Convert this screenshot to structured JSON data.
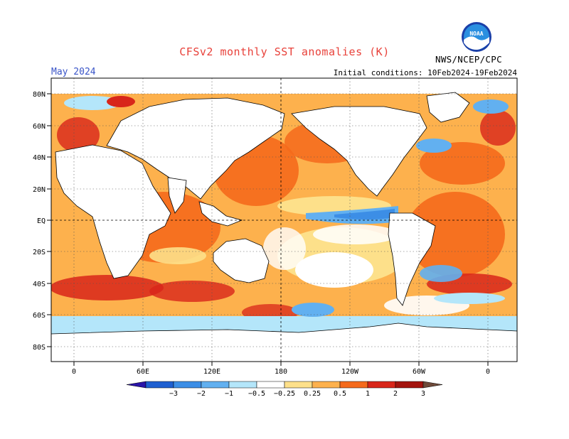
{
  "header": {
    "title": "CFSv2 monthly SST anomalies (K)",
    "month": "May 2024",
    "initial_conditions": "Initial conditions: 10Feb2024-19Feb2024",
    "agency": "NWS/NCEP/CPC",
    "logo_text": "NOAA"
  },
  "map": {
    "lat_labels": [
      "80N",
      "60N",
      "40N",
      "20N",
      "EQ",
      "20S",
      "40S",
      "60S",
      "80S"
    ],
    "lon_labels": [
      "0",
      "60E",
      "120E",
      "180",
      "120W",
      "60W",
      "0"
    ]
  },
  "legend": {
    "labels": [
      "-3",
      "-2",
      "-1",
      "-0.5",
      "-0.25",
      "0.25",
      "0.5",
      "1",
      "2",
      "3"
    ],
    "colors": [
      "#2a14a8",
      "#1e5fd0",
      "#3c8ee6",
      "#62b0f0",
      "#b4e6fa",
      "#ffffff",
      "#fde08a",
      "#fdb14d",
      "#f56a1c",
      "#d8261a",
      "#a3140e",
      "#6e4a3a"
    ]
  },
  "colors": {
    "title": "#e8413a",
    "month": "#3a55c8"
  }
}
